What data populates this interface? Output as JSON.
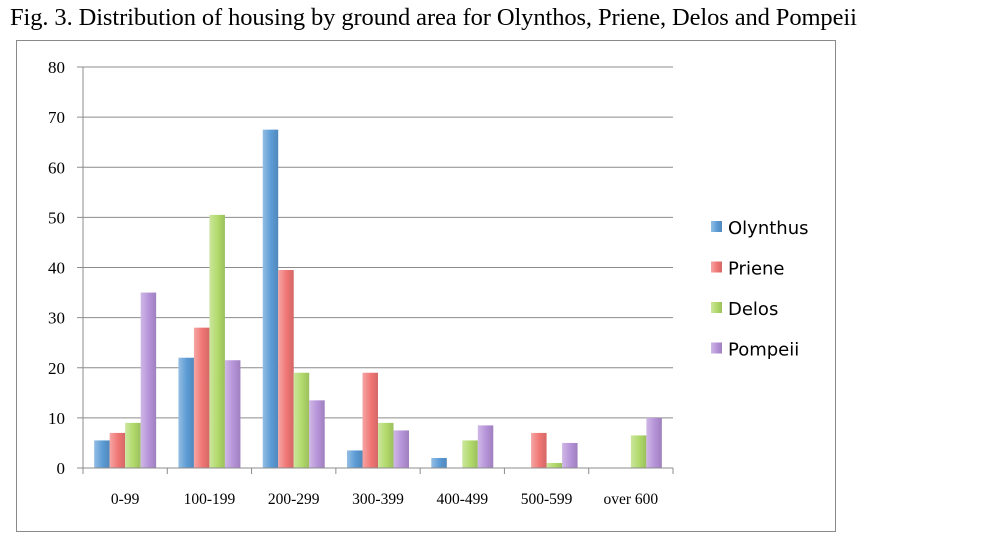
{
  "caption": "Fig. 3. Distribution of housing by ground area for Olynthos, Priene, Delos and Pompeii",
  "chart_data": {
    "type": "bar",
    "title": "",
    "xlabel": "",
    "ylabel": "",
    "ylim": [
      0,
      80
    ],
    "yticks": [
      0,
      10,
      20,
      30,
      40,
      50,
      60,
      70,
      80
    ],
    "grid": true,
    "legend_position": "right",
    "categories": [
      "0-99",
      "100-199",
      "200-299",
      "300-399",
      "400-499",
      "500-599",
      "over 600"
    ],
    "series": [
      {
        "name": "Olynthus",
        "color": "#5b9bd5",
        "values": [
          5.5,
          22,
          67.5,
          3.5,
          2,
          0,
          0
        ]
      },
      {
        "name": "Priene",
        "color": "#f07674",
        "values": [
          7,
          28,
          39.5,
          19,
          0,
          7,
          0
        ]
      },
      {
        "name": "Delos",
        "color": "#b0d96a",
        "values": [
          9,
          50.5,
          19,
          9,
          5.5,
          1,
          6.5
        ]
      },
      {
        "name": "Pompeii",
        "color": "#b592d8",
        "values": [
          35,
          21.5,
          13.5,
          7.5,
          8.5,
          5,
          10
        ]
      }
    ]
  }
}
